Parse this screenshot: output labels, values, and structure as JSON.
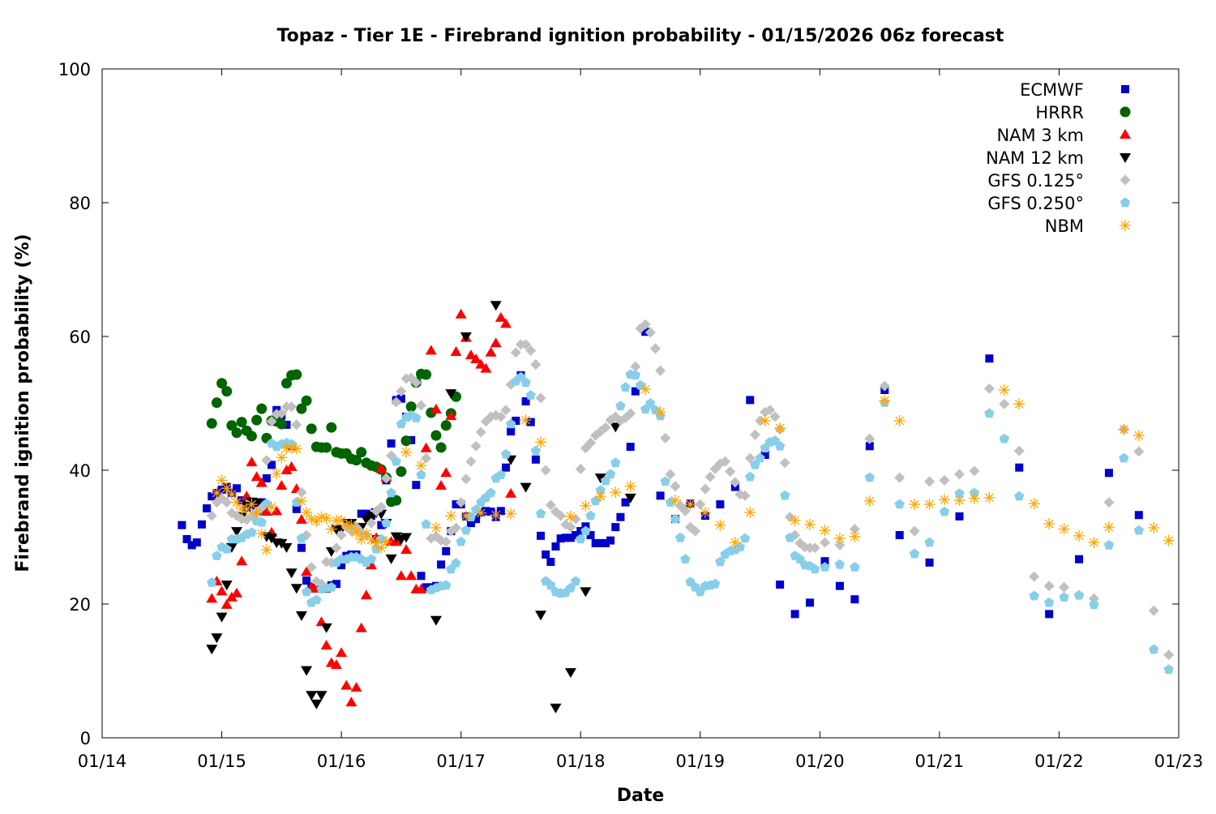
{
  "chart_data": {
    "type": "scatter",
    "title": "Topaz - Tier 1E - Firebrand ignition probability - 01/15/2026 06z forecast",
    "xlabel": "Date",
    "ylabel": "Firebrand ignition probability (%)",
    "x_unit": "hours since 01/14 00z",
    "xlim": [
      0,
      216
    ],
    "ylim": [
      0,
      100
    ],
    "x_ticks": [
      {
        "hour": 0,
        "label": "01/14"
      },
      {
        "hour": 24,
        "label": "01/15"
      },
      {
        "hour": 48,
        "label": "01/16"
      },
      {
        "hour": 72,
        "label": "01/17"
      },
      {
        "hour": 96,
        "label": "01/18"
      },
      {
        "hour": 120,
        "label": "01/19"
      },
      {
        "hour": 144,
        "label": "01/20"
      },
      {
        "hour": 168,
        "label": "01/21"
      },
      {
        "hour": 192,
        "label": "01/22"
      },
      {
        "hour": 216,
        "label": "01/23"
      }
    ],
    "y_ticks": [
      0,
      20,
      40,
      60,
      80,
      100
    ],
    "grid": false,
    "legend_position": "top-right",
    "series": [
      {
        "name": "ECMWF",
        "marker": "square",
        "color": "#0000cc",
        "segments": [
          {
            "start_hour": 16,
            "step_hours": 1,
            "values": [
              31.8,
              29.7,
              28.8,
              29.2,
              31.9,
              34.3,
              36.1,
              36.6,
              37.1,
              37.5,
              36.6,
              37.3,
              35.5,
              34.4,
              34.7,
              33.9,
              35.2,
              38.8,
              40.8,
              49.0,
              48.2,
              46.8,
              43.6,
              34.2,
              28.4,
              23.5,
              22.5,
              22.3,
              22.4,
              22.3,
              22.8,
              23.0,
              25.8,
              27.2,
              27.4,
              27.4,
              33.5,
              33.5,
              33.2,
              29.7,
              31.8,
              38.5,
              44.0,
              50.5,
              50.7,
              48.0,
              44.5,
              37.8,
              24.2,
              22.5,
              22.5,
              22.7,
              25.9,
              27.9,
              30.9,
              34.9,
              34.9,
              33.1,
              32.1,
              32.7,
              33.7,
              33.9,
              33.8,
              33.0,
              33.9,
              40.4,
              45.8,
              47.4,
              54.2,
              50.3,
              47.2,
              41.6,
              30.2,
              27.4,
              26.3,
              28.6,
              29.8,
              29.9,
              29.9,
              30.3,
              30.9,
              31.6,
              30.3,
              29.1,
              29.1,
              29.1,
              29.5,
              31.5,
              33.0,
              35.2,
              43.5,
              51.8
            ]
          },
          {
            "start_hour": 109,
            "step_hours": 3,
            "values": [
              60.7,
              36.2,
              32.7,
              35.0,
              33.2,
              34.9,
              37.5,
              50.5,
              42.3,
              22.9,
              18.5,
              20.2,
              26.4,
              22.7,
              20.7,
              43.6,
              52.0,
              30.3,
              null,
              26.2,
              null,
              33.1,
              null,
              56.7,
              null,
              40.4,
              null,
              18.5,
              null,
              26.7,
              null,
              39.6,
              null,
              33.3
            ]
          }
        ]
      },
      {
        "name": "HRRR",
        "marker": "circle",
        "color": "#006400",
        "segments": [
          {
            "start_hour": 22,
            "step_hours": 1,
            "values": [
              47.0,
              50.1,
              53.0,
              51.8,
              46.7,
              45.6,
              47.2,
              45.9,
              45.1,
              47.5,
              49.2,
              44.8,
              47.4,
              47.3,
              46.9,
              53.0,
              54.2,
              54.3,
              49.2,
              50.4,
              46.2,
              43.5,
              43.4,
              43.4,
              46.4,
              42.7,
              42.5,
              42.5,
              41.7,
              41.5,
              42.7,
              41.1,
              40.7,
              40.5,
              40.1,
              38.9,
              35.3,
              35.5,
              39.8,
              44.4,
              49.5,
              53.1,
              54.4,
              54.3,
              48.6,
              45.2,
              43.4,
              46.7,
              48.5,
              51.0
            ]
          }
        ]
      },
      {
        "name": "NAM 3 km",
        "marker": "triangle-up",
        "color": "#ff0000",
        "segments": [
          {
            "start_hour": 22,
            "step_hours": 1,
            "values": [
              20.8,
              23.4,
              21.9,
              19.9,
              21.0,
              21.6,
              26.4,
              36.1,
              41.2,
              39.0,
              38.1,
              33.8,
              30.7,
              33.9,
              37.7,
              40.0,
              40.5,
              37.2,
              32.6,
              24.8,
              22.5,
              22.3,
              17.3,
              13.8,
              11.2,
              10.9,
              12.7,
              7.8,
              5.3,
              7.5,
              16.4,
              21.3,
              25.8,
              29.9,
              40.2,
              38.9,
              29.3,
              29.3,
              24.2,
              28.1,
              24.2,
              22.2,
              22.2,
              43.3,
              57.9,
              49.1,
              37.7,
              39.6,
              48.1,
              57.7,
              63.3,
              59.8,
              57.2,
              56.6,
              55.8,
              55.2,
              57.6,
              59.0,
              62.8,
              61.9,
              36.5
            ]
          }
        ]
      },
      {
        "name": "NAM 12 km",
        "marker": "triangle-down",
        "color": "#000000",
        "segments": [
          {
            "start_hour": 22,
            "step_hours": 1,
            "values": [
              13.3,
              15.0,
              18.1,
              22.9,
              28.5,
              30.9,
              33.1,
              34.7,
              35.3,
              35.2,
              34.2,
              30.1,
              29.9,
              29.2,
              29.1,
              28.5,
              24.7,
              22.4,
              18.3,
              10.1,
              6.4,
              5.1,
              6.4,
              16.5,
              27.9,
              31.2,
              31.2,
              32.1,
              32.1,
              31.4,
              31.5,
              32.7,
              33.2,
              33.7,
              33.5,
              32.1,
              26.8,
              30.1,
              29.7,
              30.0
            ]
          },
          {
            "start_hour": 67,
            "step_hours": 3,
            "values": [
              17.6,
              51.5,
              60.0,
              null,
              64.7,
              41.6,
              37.5,
              18.4,
              4.5,
              9.8,
              21.9,
              38.9,
              46.5,
              35.9
            ]
          }
        ]
      },
      {
        "name": "GFS 0.125°",
        "marker": "diamond",
        "color": "#c0c0c0",
        "segments": [
          {
            "start_hour": 22,
            "step_hours": 1,
            "values": [
              33.2,
              35.2,
              35.8,
              35.2,
              33.6,
              33.2,
              32.7,
              32.6,
              33.2,
              33.8,
              34.4,
              41.5,
              47.3,
              48.4,
              48.5,
              49.5,
              49.5,
              46.8,
              36.7,
              30.3,
              25.5,
              23.4,
              23.0,
              26.3,
              26.2,
              28.4,
              30.3,
              31.5,
              30.9,
              31.5,
              30.7,
              30.3,
              32.1,
              33.9,
              34.5,
              38.8,
              42.2,
              50.2,
              51.8,
              53.7,
              53.8,
              53.1,
              49.7,
              41.8,
              29.8,
              30.1,
              29.5,
              29.3,
              30.9,
              31.4,
              35.2,
              38.7,
              41.3,
              43.6,
              45.7,
              47.3,
              48.0,
              48.2,
              48.0,
              49.0,
              52.8,
              57.6,
              58.8,
              58.8,
              57.9,
              55.8,
              50.8,
              40.0,
              34.8,
              33.8,
              33.2,
              31.9,
              31.5,
              32.7,
              40.2,
              43.3,
              44.1,
              45.2,
              45.8,
              46.4,
              47.5,
              48.0,
              47.4,
              47.8,
              48.5,
              55.5,
              61.2,
              61.8,
              60.6,
              58.2,
              54.9,
              44.8,
              39.4,
              37.6,
              34.7,
              33.9,
              31.5,
              30.9,
              34.9,
              37.2,
              39.0,
              40.2,
              41.0,
              41.3,
              39.8,
              38.2,
              36.4,
              36.2,
              41.8,
              45.3,
              47.4,
              48.7,
              49.0,
              48.0,
              46.1,
              41.1,
              33.0,
              30.3,
              29.1,
              28.5,
              28.4,
              28.4
            ]
          },
          {
            "start_hour": 145,
            "step_hours": 3,
            "values": [
              29.2,
              28.8,
              31.2,
              44.7,
              52.6,
              38.9,
              30.9,
              38.3,
              38.5,
              39.4,
              39.9,
              52.2,
              49.9,
              42.9,
              24.1,
              22.7,
              22.5,
              21.3,
              20.8,
              35.2,
              46.1,
              42.8,
              19.0,
              12.4
            ]
          }
        ]
      },
      {
        "name": "GFS 0.250°",
        "marker": "pentagon",
        "color": "#87ceeb",
        "segments": [
          {
            "start_hour": 22,
            "step_hours": 1,
            "values": [
              23.2,
              27.2,
              28.5,
              28.2,
              29.7,
              29.7,
              29.9,
              30.4,
              30.7,
              32.4,
              32.2,
              35.0,
              44.0,
              43.5,
              43.9,
              44.1,
              43.9,
              35.2,
              29.8,
              21.8,
              20.2,
              20.6,
              22.2,
              22.4,
              22.5,
              26.2,
              26.7,
              26.7,
              27.0,
              27.0,
              26.7,
              26.2,
              26.7,
              28.2,
              29.7,
              32.1,
              36.6,
              41.3,
              46.9,
              47.9,
              48.2,
              47.8,
              39.3,
              31.9,
              22.1,
              22.4,
              22.7,
              22.8,
              25.2,
              26.1,
              29.3,
              31.0,
              33.0,
              34.1,
              35.2,
              35.9,
              36.6,
              38.8,
              39.3,
              42.4,
              46.9,
              53.3,
              53.9,
              53.1,
              51.2,
              42.9,
              33.5,
              23.4,
              22.8,
              21.8,
              21.6,
              21.7,
              22.4,
              23.4,
              29.7,
              30.9,
              33.2,
              35.4,
              37.0,
              38.4,
              39.4,
              41.1,
              49.6,
              52.4,
              54.3,
              54.2,
              52.7,
              49.1,
              50.0,
              49.0,
              48.1,
              38.3,
              35.2,
              32.7,
              29.9,
              26.7,
              23.3,
              22.5,
              21.8,
              22.7,
              22.8,
              23.0,
              26.3,
              27.4,
              27.9,
              28.1,
              28.5,
              29.8,
              39.0,
              40.8,
              41.8,
              43.3,
              44.2,
              44.4,
              43.6,
              36.2,
              29.9,
              27.2,
              26.7,
              25.8,
              25.7,
              25.2
            ]
          },
          {
            "start_hour": 145,
            "step_hours": 3,
            "values": [
              25.5,
              25.9,
              25.5,
              38.9,
              50.1,
              34.9,
              27.5,
              29.2,
              33.8,
              36.5,
              36.6,
              48.5,
              44.7,
              36.1,
              21.2,
              20.2,
              21.0,
              21.3,
              19.9,
              28.8,
              41.8,
              31.0,
              13.2,
              10.2
            ]
          }
        ]
      },
      {
        "name": "NBM",
        "marker": "asterisk",
        "color": "#ffa500",
        "segments": [
          {
            "start_hour": 23,
            "step_hours": 1,
            "values": [
              36.6,
              38.5,
              37.3,
              36.4,
              35.2,
              34.2,
              34.2,
              34.9,
              33.6,
              30.5,
              28.1,
              34.5,
              39.5,
              41.9,
              43.3,
              43.3,
              43.2,
              35.4,
              33.7,
              32.7,
              32.4,
              33.0,
              32.8,
              31.2,
              32.5,
              32.5,
              31.8,
              31.8,
              30.7,
              29.7,
              30.5,
              29.6,
              29.1,
              28.4,
              29.3
            ]
          },
          {
            "start_hour": 61,
            "step_hours": 3,
            "values": [
              42.7,
              40.7,
              31.4,
              33.2,
              33.2,
              33.6,
              33.3,
              33.5,
              47.5,
              44.2,
              null,
              33.1,
              34.7,
              36.1,
              36.7,
              37.6,
              52.1,
              48.7,
              35.5,
              34.9,
              33.7,
              31.8,
              29.2,
              33.7,
              47.4,
              46.3,
              32.5,
              31.9,
              31.0,
              29.8,
              30.1,
              35.4,
              50.4,
              47.4,
              34.9,
              34.9,
              35.6,
              35.5,
              35.8,
              35.9,
              52.0,
              49.9,
              35.0,
              32.0,
              31.2,
              30.2,
              29.2,
              31.5,
              46.1,
              45.2,
              31.4,
              29.5
            ]
          }
        ]
      }
    ]
  }
}
